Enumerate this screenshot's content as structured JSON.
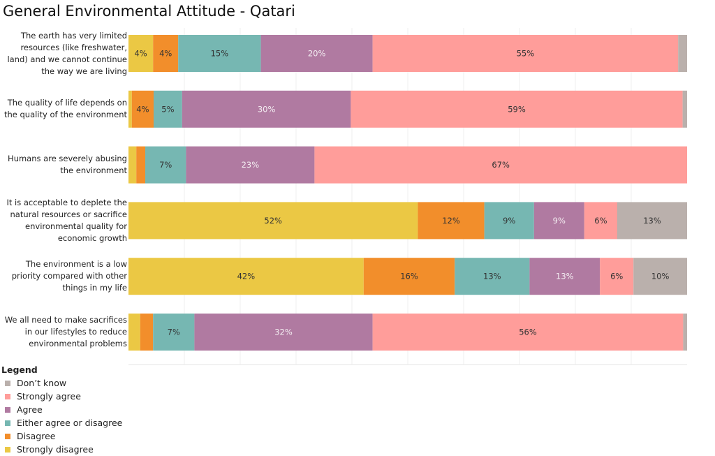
{
  "chart_data": {
    "type": "bar",
    "orientation": "horizontal-stacked-100",
    "title": "General Environmental Attitude - Qatari",
    "xlim": [
      0,
      100
    ],
    "grid": true,
    "legend_title": "Legend",
    "legend_placement": "bottom-left",
    "series": [
      {
        "name": "Strongly disagree",
        "color": "#EBC844"
      },
      {
        "name": "Disagree",
        "color": "#F28E2B"
      },
      {
        "name": "Either agree or disagree",
        "color": "#76B7B2"
      },
      {
        "name": "Agree",
        "color": "#B07AA1"
      },
      {
        "name": "Strongly agree",
        "color": "#FF9D9A"
      },
      {
        "name": "Don’t know",
        "color": "#BAB0AC"
      }
    ],
    "legend_order": [
      "Don’t know",
      "Strongly agree",
      "Agree",
      "Either agree or disagree",
      "Disagree",
      "Strongly disagree"
    ],
    "categories": [
      "The earth has very limited resources (like freshwater, land) and we cannot continue the way we are living",
      "The quality of life depends on the quality of the environment",
      "Humans are severely abusing the environment",
      "It is acceptable to deplete the natural resources or sacrifice environmental quality for economic growth",
      "The environment is a low priority compared with other things in my life",
      "We all need to make sacrifices in our lifestyles to reduce environmental problems"
    ],
    "values": [
      [
        4.4,
        4.5,
        14.8,
        20.0,
        54.7,
        1.6
      ],
      [
        0.6,
        3.9,
        5.1,
        30.2,
        59.4,
        0.8
      ],
      [
        1.4,
        1.6,
        7.3,
        23.0,
        66.7,
        0.0
      ],
      [
        51.8,
        11.9,
        8.9,
        9.0,
        5.9,
        12.5
      ],
      [
        42.1,
        16.3,
        13.4,
        12.6,
        6.0,
        9.6
      ],
      [
        2.1,
        2.3,
        7.4,
        31.9,
        55.6,
        0.7
      ]
    ],
    "data_labels": [
      [
        "4%",
        "4%",
        "15%",
        "20%",
        "55%",
        ""
      ],
      [
        "",
        "4%",
        "5%",
        "30%",
        "59%",
        ""
      ],
      [
        "",
        "",
        "7%",
        "23%",
        "67%",
        ""
      ],
      [
        "52%",
        "12%",
        "9%",
        "9%",
        "6%",
        "13%"
      ],
      [
        "42%",
        "16%",
        "13%",
        "13%",
        "6%",
        "10%"
      ],
      [
        "",
        "",
        "7%",
        "32%",
        "56%",
        ""
      ]
    ]
  }
}
